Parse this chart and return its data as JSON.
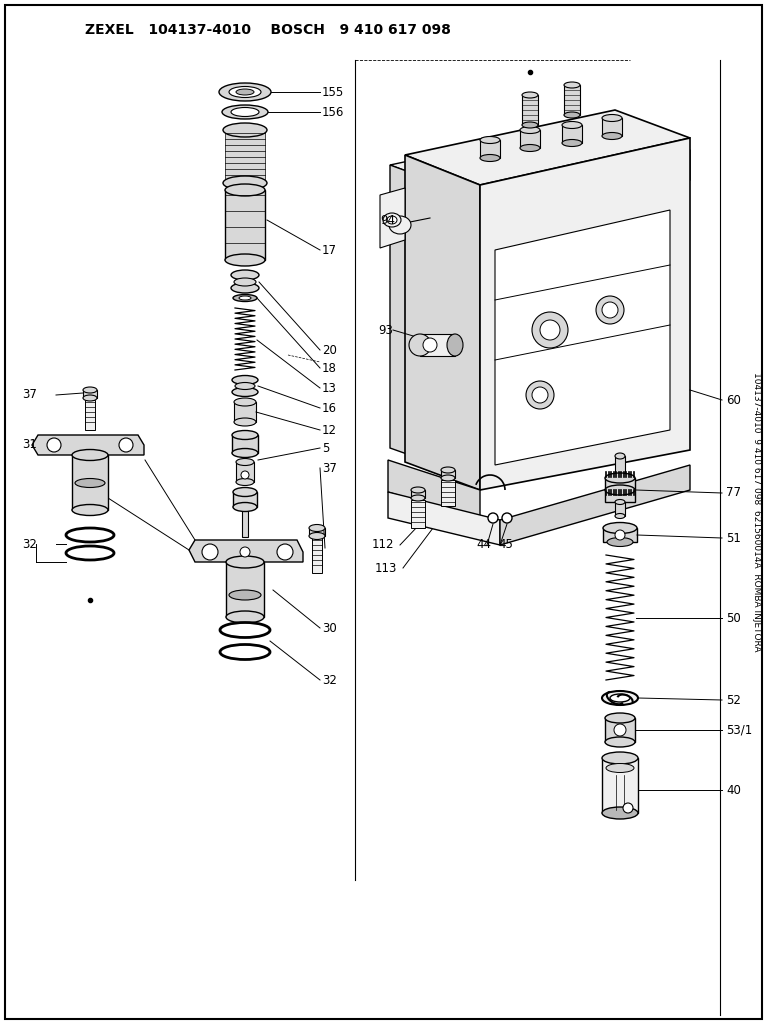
{
  "title": "ZEXEL   104137-4010    BOSCH   9 410 617 098",
  "side_text": "104137-4010  9 410 617 098  621560014A  ROMBA INJETORA",
  "bg": "#ffffff",
  "lc": "#000000",
  "fc_light": "#f0f0f0",
  "fc_mid": "#d8d8d8",
  "fc_dark": "#b8b8b8",
  "fig_w": 7.68,
  "fig_h": 10.24,
  "dpi": 100
}
